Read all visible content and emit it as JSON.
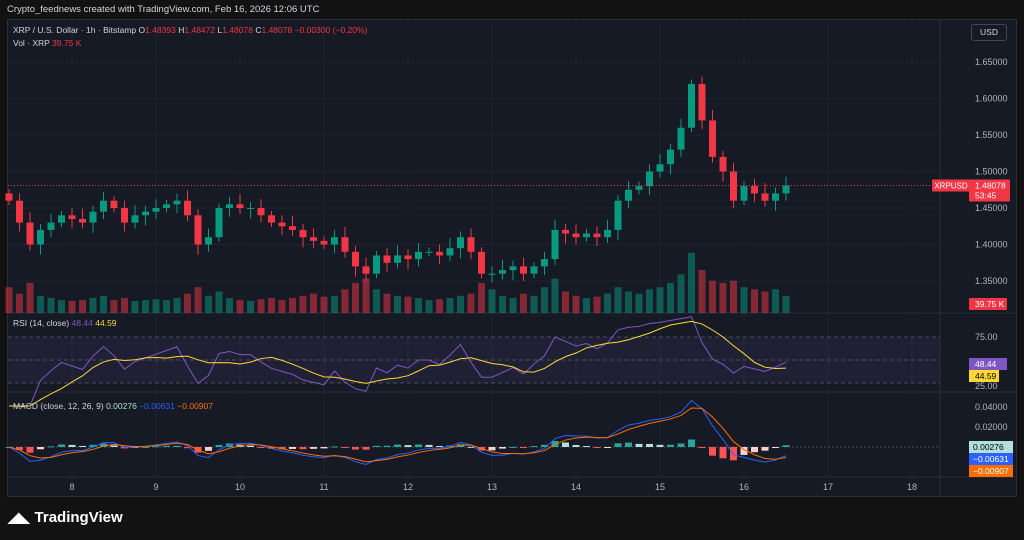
{
  "credit": "Crypto_feednews created with TradingView.com, Feb 16, 2026 12:06 UTC",
  "legend": {
    "symbol": "XRP / U.S. Dollar · 1h · Bitstamp",
    "o_label": "O",
    "o": "1.48393",
    "h_label": "H",
    "h": "1.48472",
    "l_label": "L",
    "l": "1.48078",
    "c_label": "C",
    "c": "1.48078",
    "change": "−0.00300 (−0.20%)",
    "vol_label": "Vol · XRP",
    "vol": "39.75 K"
  },
  "currency_button": "USD",
  "price_axis": {
    "ticks": [
      "1.65000",
      "1.60000",
      "1.55000",
      "1.50000",
      "1.45000",
      "1.40000",
      "1.35000"
    ],
    "symbol_tag": "XRPUSD",
    "last_price": "1.48078",
    "countdown": "53:45",
    "volume_tag": "39.75 K"
  },
  "rsi": {
    "label": "RSI (14, close)",
    "value": "48.44",
    "ma": "44.59",
    "ticks": [
      "75.00",
      "25.00"
    ]
  },
  "macd": {
    "label": "MACD (close, 12, 26, 9)",
    "hist": "0.00276",
    "macd": "−0.00631",
    "signal": "−0.00907",
    "ticks": [
      "0.04000",
      "0.02000"
    ]
  },
  "time_axis": [
    "8",
    "9",
    "10",
    "11",
    "12",
    "13",
    "14",
    "15",
    "16",
    "17",
    "18"
  ],
  "colors": {
    "up": "#089981",
    "down": "#f23645",
    "rsi": "#7e57c2",
    "rsi_ma": "#fdd835",
    "macd": "#2962ff",
    "signal": "#ff6d00",
    "bg": "#161a25"
  },
  "brand": "TradingView",
  "chart_data": {
    "type": "candlestick",
    "x_start_day": 7.25,
    "x_step_days": 0.125,
    "first_open": 1.47,
    "closes": [
      1.46,
      1.43,
      1.4,
      1.42,
      1.43,
      1.44,
      1.435,
      1.43,
      1.445,
      1.46,
      1.45,
      1.43,
      1.44,
      1.445,
      1.45,
      1.455,
      1.46,
      1.44,
      1.4,
      1.41,
      1.45,
      1.455,
      1.45,
      1.45,
      1.44,
      1.43,
      1.425,
      1.42,
      1.41,
      1.405,
      1.4,
      1.41,
      1.39,
      1.37,
      1.36,
      1.385,
      1.375,
      1.385,
      1.38,
      1.39,
      1.39,
      1.385,
      1.395,
      1.41,
      1.39,
      1.36,
      1.36,
      1.365,
      1.37,
      1.36,
      1.37,
      1.38,
      1.42,
      1.415,
      1.41,
      1.415,
      1.41,
      1.42,
      1.46,
      1.475,
      1.48,
      1.5,
      1.51,
      1.53,
      1.56,
      1.62,
      1.57,
      1.52,
      1.5,
      1.46,
      1.48,
      1.47,
      1.46,
      1.47,
      1.48078
    ],
    "volumes_k": [
      60,
      45,
      70,
      40,
      35,
      30,
      28,
      30,
      35,
      40,
      30,
      35,
      28,
      30,
      32,
      30,
      35,
      45,
      60,
      40,
      50,
      35,
      30,
      28,
      32,
      35,
      30,
      35,
      40,
      45,
      38,
      40,
      55,
      70,
      80,
      55,
      45,
      40,
      38,
      35,
      30,
      32,
      35,
      40,
      45,
      70,
      55,
      40,
      35,
      45,
      40,
      60,
      80,
      50,
      40,
      35,
      38,
      45,
      60,
      50,
      45,
      55,
      60,
      70,
      90,
      140,
      100,
      75,
      70,
      75,
      60,
      55,
      50,
      55,
      39.75
    ],
    "ylim": [
      1.31,
      1.68
    ]
  }
}
